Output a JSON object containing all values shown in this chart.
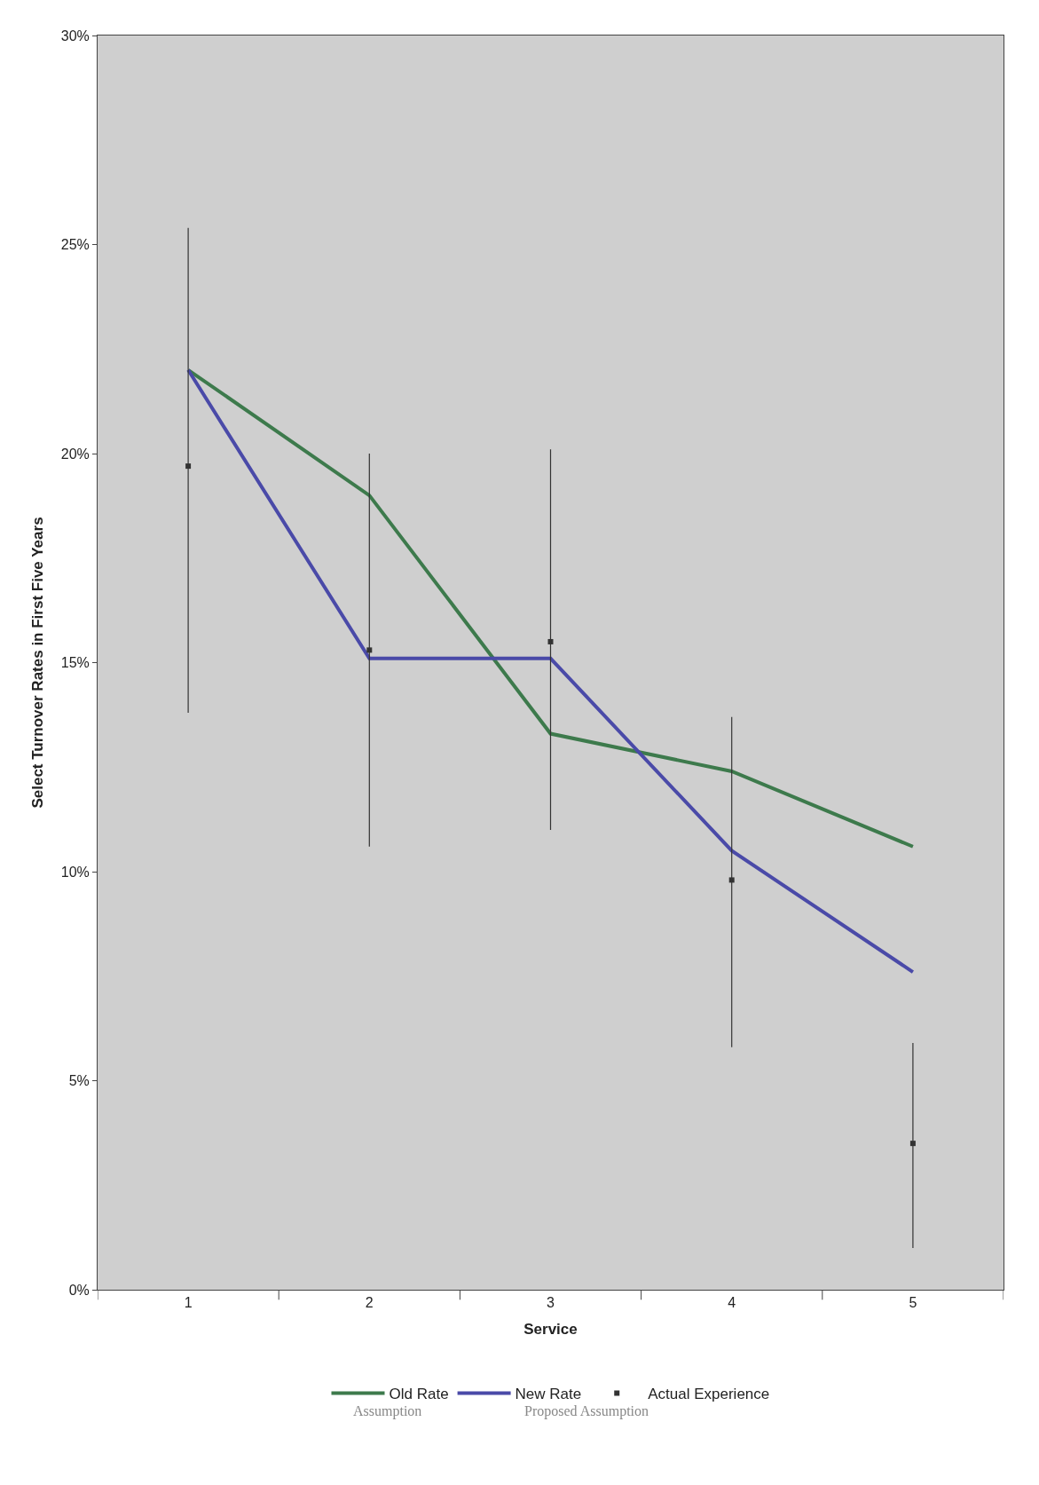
{
  "chart_data": {
    "type": "line",
    "xlabel": "Service",
    "ylabel": "Select Turnover Rates in First Five Years",
    "categories": [
      "1",
      "2",
      "3",
      "4",
      "5"
    ],
    "series": [
      {
        "name": "Old Rate",
        "color": "#3d7a4c",
        "values": [
          22,
          19,
          13.3,
          12.4,
          10.6
        ]
      },
      {
        "name": "New Rate",
        "color": "#4a4aa8",
        "values": [
          22,
          15.1,
          15.1,
          10.5,
          7.6
        ]
      },
      {
        "name": "Actual Experience",
        "type": "scatter",
        "marker": "square",
        "color": "#333333",
        "values": [
          19.7,
          15.3,
          15.5,
          9.8,
          3.5
        ],
        "errors": [
          [
            13.8,
            25.4
          ],
          [
            10.6,
            20
          ],
          [
            11,
            20.1
          ],
          [
            5.8,
            13.7
          ],
          [
            1,
            5.9
          ]
        ]
      }
    ],
    "ylim": [
      0,
      30
    ],
    "yticks": [
      {
        "value": 0,
        "label": "0%"
      },
      {
        "value": 5,
        "label": "5%"
      },
      {
        "value": 10,
        "label": "10%"
      },
      {
        "value": 15,
        "label": "15%"
      },
      {
        "value": 20,
        "label": "20%"
      },
      {
        "value": 25,
        "label": "25%"
      },
      {
        "value": 30,
        "label": "30%"
      }
    ],
    "grid": false,
    "legend": "bottom",
    "line_style": "solid",
    "annotations": [
      "Assumption",
      "Proposed Assumption"
    ]
  }
}
